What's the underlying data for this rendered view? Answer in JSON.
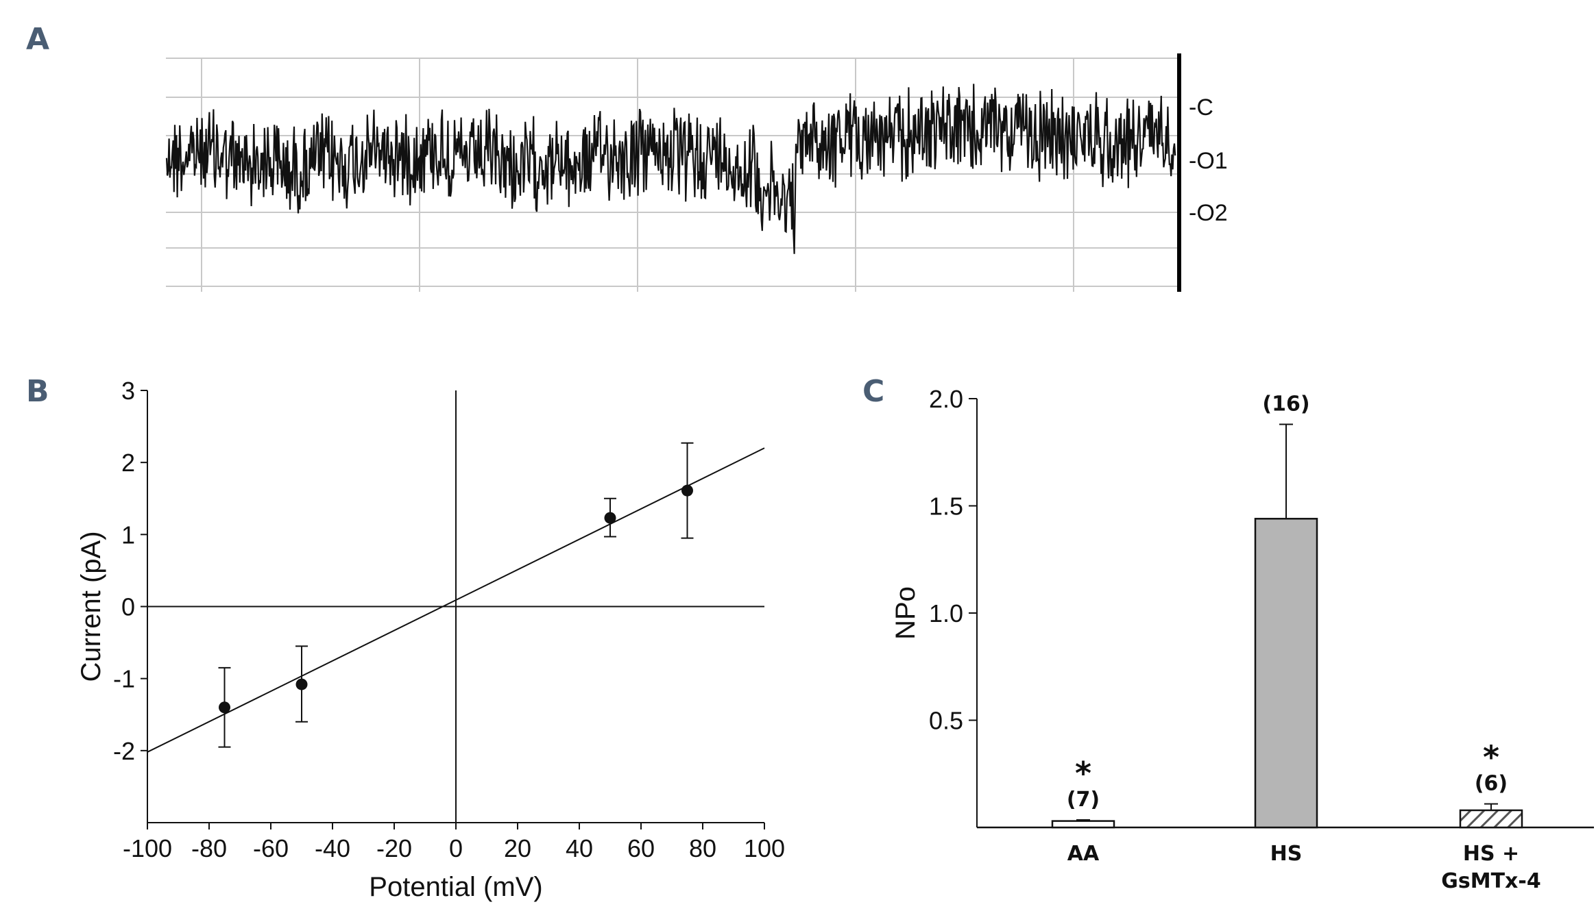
{
  "panels": {
    "a": "A",
    "b": "B",
    "c": "C"
  },
  "colors": {
    "trace": "#111111",
    "grid": "#c8c8c8",
    "bar_fill": "#b5b5b5",
    "hatch": "#555555",
    "label": "#4a5d73"
  },
  "chart_data": [
    {
      "type": "line",
      "panel": "A",
      "description_labels": [
        "-C",
        "-O1",
        "-O2"
      ],
      "state_labels": [
        "-C",
        "-O1",
        "-O2"
      ],
      "grid": true
    },
    {
      "type": "scatter",
      "panel": "B",
      "xlabel": "Potential (mV)",
      "ylabel": "Current (pA)",
      "xlim": [
        -100,
        100
      ],
      "ylim": [
        -3,
        3
      ],
      "xticks": [
        -100,
        -80,
        -60,
        -40,
        -20,
        0,
        20,
        40,
        60,
        80,
        100
      ],
      "yticks": [
        3,
        2,
        1,
        0,
        -1,
        -2
      ],
      "points": [
        {
          "x": -75,
          "y": -1.4,
          "err_lo": -1.95,
          "err_hi": -0.85
        },
        {
          "x": -50,
          "y": -1.08,
          "err_lo": -1.6,
          "err_hi": -0.55
        },
        {
          "x": 50,
          "y": 1.23,
          "err_lo": 0.97,
          "err_hi": 1.5
        },
        {
          "x": 75,
          "y": 1.61,
          "err_lo": 0.95,
          "err_hi": 2.27
        }
      ],
      "fit_line": {
        "x": [
          -100,
          100
        ],
        "y": [
          -2.02,
          2.2
        ]
      }
    },
    {
      "type": "bar",
      "panel": "C",
      "ylabel": "NPo",
      "ylim": [
        0,
        2.0
      ],
      "yticks": [
        "2.0",
        "1.5",
        "1.0",
        "0.5"
      ],
      "categories": [
        "AA",
        "HS",
        "HS +\nGsMTx-4"
      ],
      "category_lines": [
        [
          "AA"
        ],
        [
          "HS"
        ],
        [
          "HS +",
          "GsMTx-4"
        ]
      ],
      "values": [
        0.03,
        1.44,
        0.08
      ],
      "errors": [
        0.005,
        0.44,
        0.03
      ],
      "n_labels": [
        "(7)",
        "(16)",
        "(6)"
      ],
      "significance": [
        "*",
        "",
        "*"
      ],
      "fills": [
        "white",
        "grey",
        "hatched"
      ]
    }
  ]
}
